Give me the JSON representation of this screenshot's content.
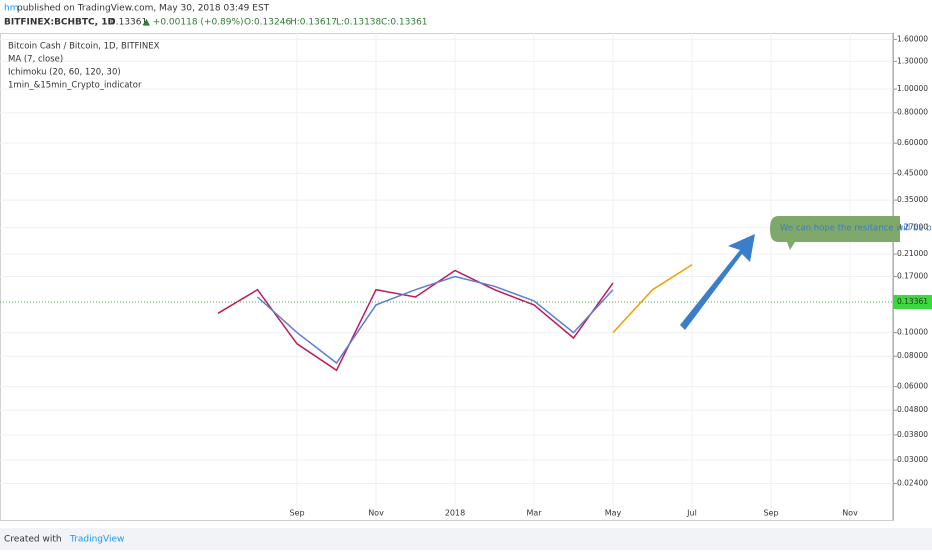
{
  "header": {
    "author": "hm",
    "published": "published on TradingView.com, May 30, 2018 03:49 EST",
    "symbol": "BITFINEX:BCHBTC, 1D",
    "price": "0.13361",
    "change": "▲ +0.00118 (+0.89%)",
    "ohlc": [
      "O:0.13246",
      "H:0.13617",
      "L:0.13138",
      "C:0.13361"
    ]
  },
  "chart_data": {
    "type": "line",
    "log_scale": true,
    "grid": true,
    "legend": [
      "Bitcoin Cash / Bitcoin, 1D, BITFINEX",
      "MA (7, close)",
      "Ichimoku (20, 60, 120, 30)",
      "1min_&15min_Crypto_indicator"
    ],
    "categories": [
      null,
      null,
      "Sep",
      null,
      "Nov",
      null,
      "2018",
      null,
      "Mar",
      null,
      "May",
      null,
      "Jul",
      null,
      "Sep",
      null,
      "Nov",
      null
    ],
    "series": [
      {
        "name": "Bitcoin Cash / Bitcoin, 1D, BITFINEX",
        "color": "#c2185b",
        "values": [
          0.12,
          0.15,
          0.09,
          0.07,
          0.15,
          0.14,
          0.18,
          0.15,
          0.13,
          0.095,
          0.16,
          null,
          null,
          null,
          null,
          null,
          null,
          null
        ]
      },
      {
        "name": "MA (7, close)",
        "color": "#5b7fd6",
        "values": [
          null,
          0.14,
          0.1,
          0.075,
          0.13,
          0.15,
          0.17,
          0.155,
          0.135,
          0.1,
          0.15,
          null,
          null,
          null,
          null,
          null,
          null,
          null
        ]
      },
      {
        "name": "Ichimoku (20, 60, 120, 30)",
        "color": "#f0a000",
        "values": [
          null,
          null,
          null,
          null,
          null,
          null,
          null,
          null,
          null,
          null,
          0.1,
          0.15,
          0.19,
          null,
          null,
          null,
          null,
          null
        ]
      }
    ],
    "ylim": [
      0.017,
      1.7
    ],
    "yticks": [
      {
        "value": 1.6,
        "label": "1.60000"
      },
      {
        "value": 1.3,
        "label": "1.30000"
      },
      {
        "value": 1,
        "label": "1.00000"
      },
      {
        "value": 0.8,
        "label": "0.80000"
      },
      {
        "value": 0.6,
        "label": "0.60000"
      },
      {
        "value": 0.45,
        "label": "0.45000"
      },
      {
        "value": 0.35,
        "label": "0.35000"
      },
      {
        "value": 0.27,
        "label": "0.27000"
      },
      {
        "value": 0.21,
        "label": "0.21000"
      },
      {
        "value": 0.17,
        "label": "0.17000"
      },
      {
        "value": 0.1,
        "label": "0.10000"
      },
      {
        "value": 0.08,
        "label": "0.08000"
      },
      {
        "value": 0.06,
        "label": "0.06000"
      },
      {
        "value": 0.048,
        "label": "0.04800"
      },
      {
        "value": 0.038,
        "label": "0.03800"
      },
      {
        "value": 0.03,
        "label": "0.03000"
      },
      {
        "value": 0.024,
        "label": "0.02400"
      }
    ],
    "last_price": 0.13361,
    "annotation": "We can hope the resitance will be b"
  },
  "footer": {
    "created": "Created with",
    "brand": "TradingView"
  }
}
